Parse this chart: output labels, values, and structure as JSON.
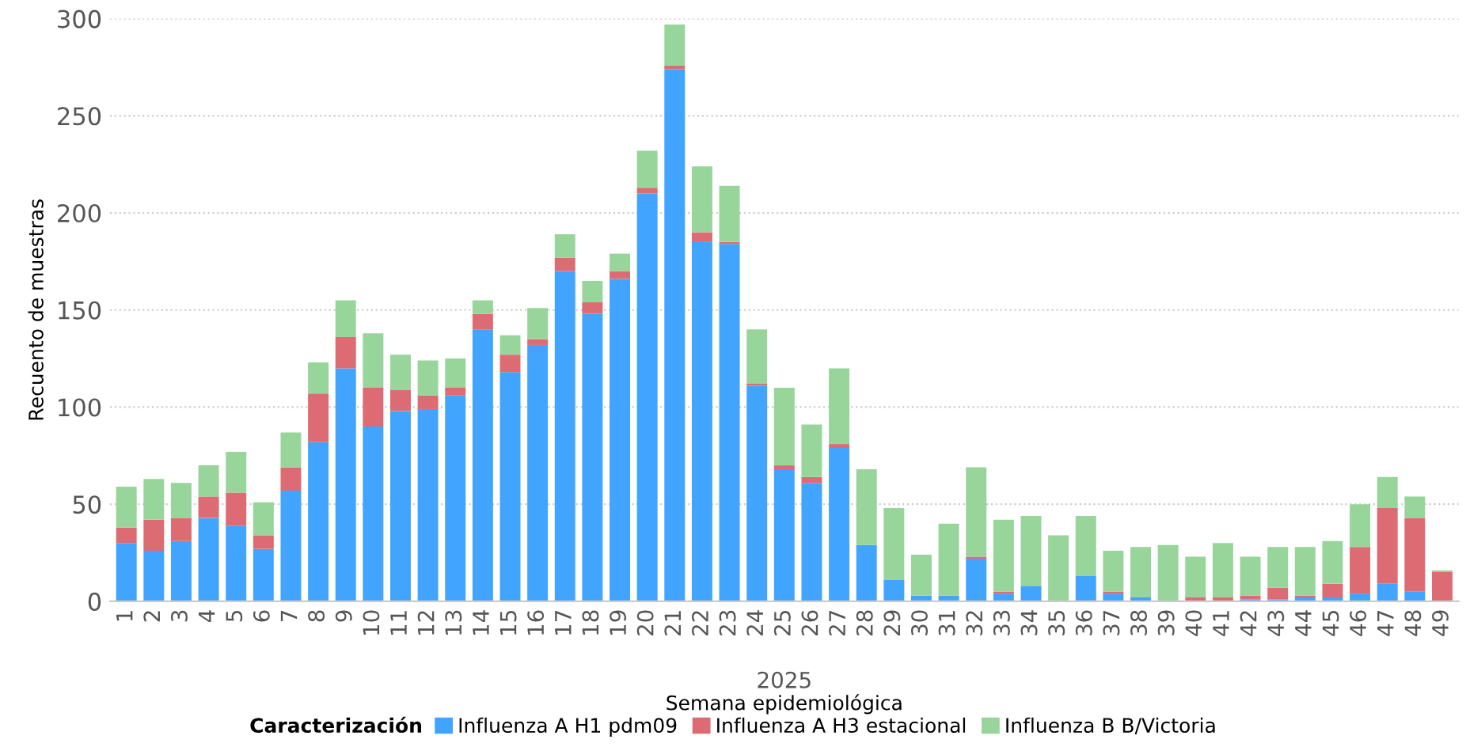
{
  "chart_data": {
    "type": "bar",
    "stacked": true,
    "xlabel": "Semana epidemiológica",
    "ylabel": "Recuento de muestras",
    "legend_title": "Caracterización",
    "legend": "bottom",
    "grid": "y",
    "annotations": [
      "2025"
    ],
    "categories": [
      "1",
      "2",
      "3",
      "4",
      "5",
      "6",
      "7",
      "8",
      "9",
      "10",
      "11",
      "12",
      "13",
      "14",
      "15",
      "16",
      "17",
      "18",
      "19",
      "20",
      "21",
      "22",
      "23",
      "24",
      "25",
      "26",
      "27",
      "28",
      "29",
      "30",
      "31",
      "32",
      "33",
      "34",
      "35",
      "36",
      "37",
      "38",
      "39",
      "40",
      "41",
      "42",
      "43",
      "44",
      "45",
      "46",
      "47",
      "48",
      "49"
    ],
    "ylim": [
      0,
      300
    ],
    "yticks": [
      0,
      50,
      100,
      150,
      200,
      250,
      300
    ],
    "series": [
      {
        "name": "Influenza A H1 pdm09",
        "color": "#41a4ff",
        "values": [
          30,
          26,
          31,
          43,
          39,
          27,
          57,
          82,
          120,
          90,
          98,
          99,
          106,
          140,
          118,
          132,
          170,
          148,
          166,
          210,
          274,
          185,
          184,
          111,
          68,
          61,
          79,
          29,
          11,
          3,
          3,
          22,
          4,
          8,
          0,
          13,
          4,
          2,
          0,
          0,
          0,
          1,
          1,
          2,
          2,
          4,
          9,
          5,
          0
        ]
      },
      {
        "name": "Influenza A H3 estacional",
        "color": "#dd6b73",
        "values": [
          8,
          16,
          12,
          11,
          17,
          7,
          12,
          25,
          16,
          20,
          11,
          7,
          4,
          8,
          9,
          3,
          7,
          6,
          4,
          3,
          2,
          5,
          1,
          1,
          2,
          3,
          2,
          0,
          0,
          0,
          0,
          1,
          1,
          0,
          0,
          0,
          1,
          0,
          0,
          2,
          2,
          2,
          6,
          1,
          7,
          24,
          39,
          38,
          15
        ]
      },
      {
        "name": "Influenza B B/Victoria",
        "color": "#98d59b",
        "values": [
          21,
          21,
          18,
          16,
          21,
          17,
          18,
          16,
          19,
          28,
          18,
          18,
          15,
          7,
          10,
          16,
          12,
          11,
          9,
          19,
          21,
          34,
          29,
          28,
          40,
          27,
          39,
          39,
          37,
          21,
          37,
          46,
          37,
          36,
          34,
          31,
          21,
          26,
          29,
          21,
          28,
          20,
          21,
          25,
          22,
          22,
          16,
          11,
          1
        ]
      }
    ]
  }
}
